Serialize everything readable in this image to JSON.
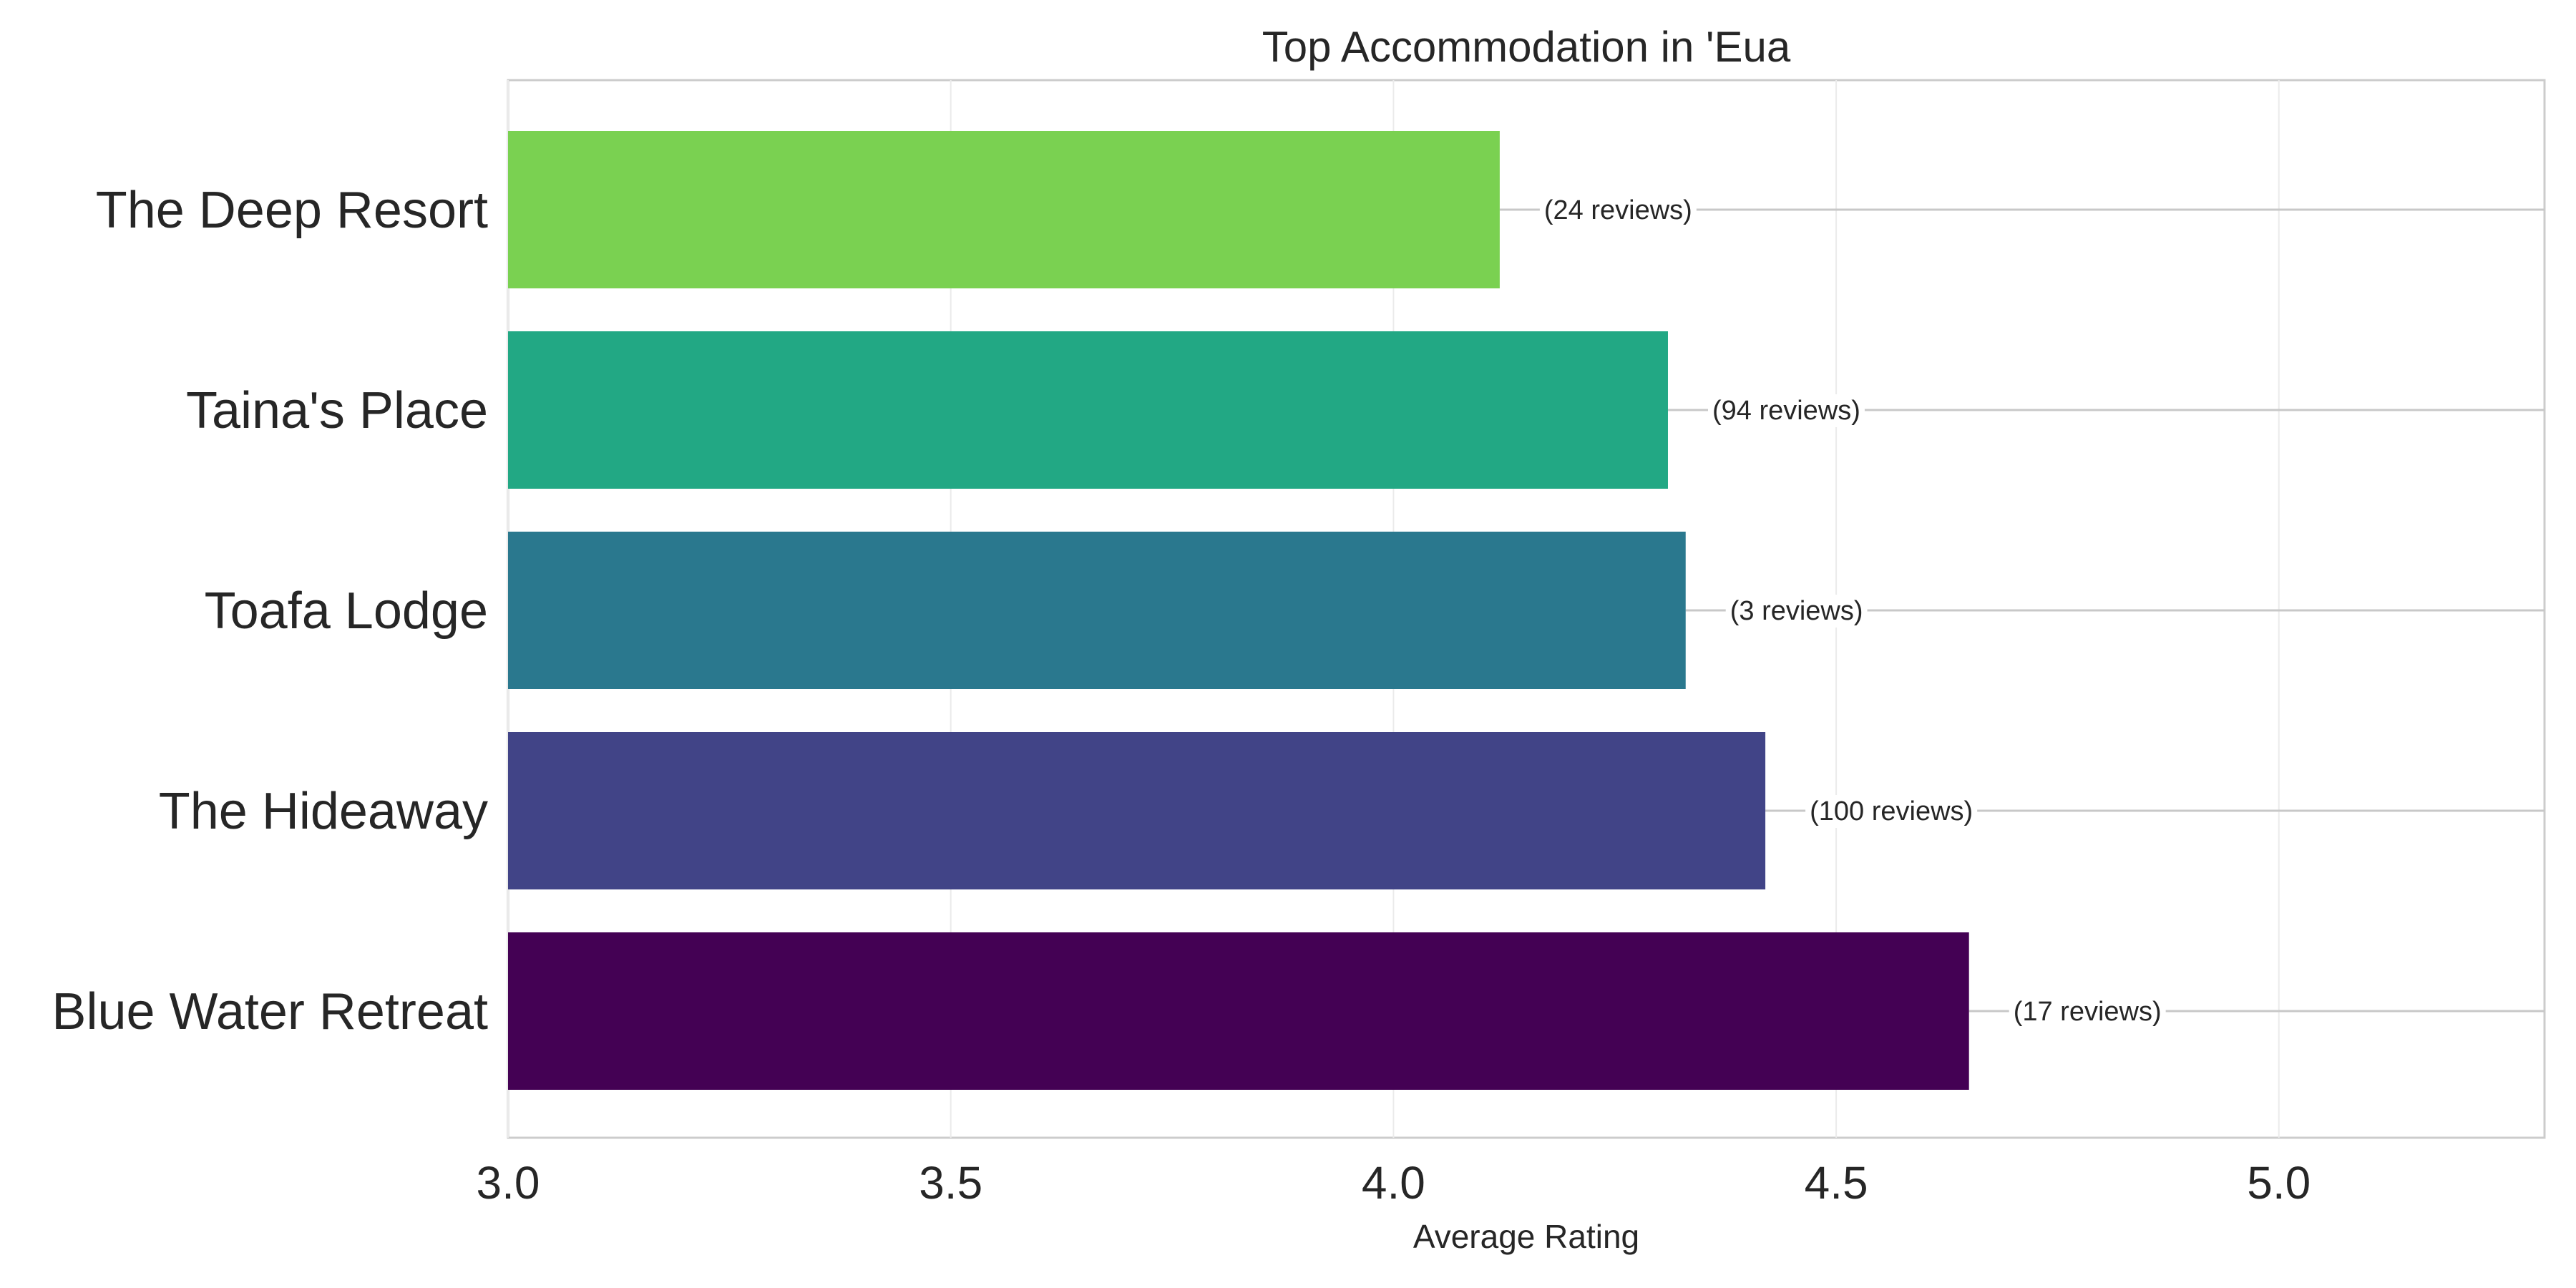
{
  "chart_data": {
    "type": "bar",
    "orientation": "horizontal",
    "title": "Top Accommodation in 'Eua",
    "xlabel": "Average Rating",
    "ylabel": "",
    "xlim": [
      3.0,
      5.3
    ],
    "xticks": [
      3.0,
      3.5,
      4.0,
      4.5,
      5.0
    ],
    "xtick_labels": [
      "3.0",
      "3.5",
      "4.0",
      "4.5",
      "5.0"
    ],
    "grid": true,
    "categories": [
      "The Deep Resort",
      "Taina's Place",
      "Toafa Lodge",
      "The Hideaway",
      "Blue Water Retreat"
    ],
    "values": [
      4.12,
      4.31,
      4.33,
      4.42,
      4.65
    ],
    "annotations": [
      "(24 reviews)",
      "(94 reviews)",
      "(3 reviews)",
      "(100 reviews)",
      "(17 reviews)"
    ],
    "colors": [
      "#7ad151",
      "#22a884",
      "#2a788e",
      "#414487",
      "#440154"
    ]
  }
}
